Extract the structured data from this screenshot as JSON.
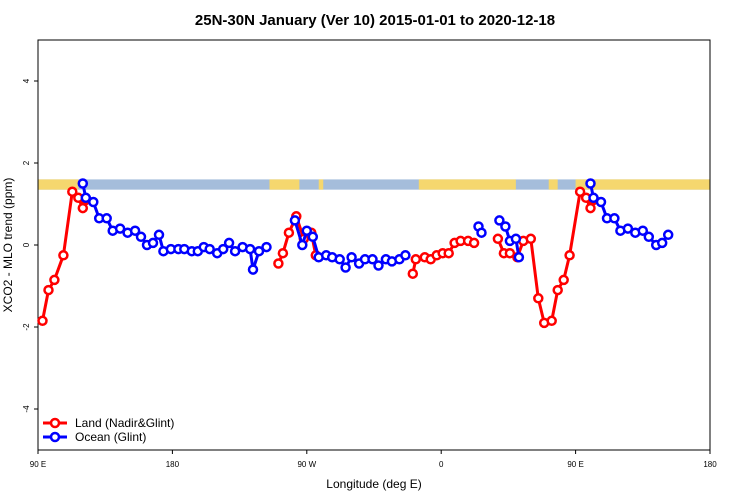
{
  "chart_data": {
    "type": "line",
    "title": "25N-30N January (Ver 10)   2015-01-01 to 2020-12-18",
    "xlabel": "Longitude (deg E)",
    "ylabel": "XCO2 - MLO trend (ppm)",
    "xlim": [
      90,
      540
    ],
    "ylim": [
      -5,
      5
    ],
    "x_ticks": [
      {
        "value": 90,
        "label": "90 E"
      },
      {
        "value": 180,
        "label": "180"
      },
      {
        "value": 270,
        "label": "90 W"
      },
      {
        "value": 360,
        "label": "0"
      },
      {
        "value": 450,
        "label": "90 E"
      },
      {
        "value": 540,
        "label": "180"
      }
    ],
    "y_ticks": [
      {
        "value": -4,
        "label": "-4"
      },
      {
        "value": -2,
        "label": "-2"
      },
      {
        "value": 0,
        "label": "0"
      },
      {
        "value": 2,
        "label": "2"
      },
      {
        "value": 4,
        "label": "4"
      }
    ],
    "grid": false,
    "legend_position": "bottom-left",
    "land_mask": {
      "y_range": [
        1.35,
        1.6
      ],
      "ocean_color": "#a5bddb",
      "land_color": "#f5d76e",
      "land_x_ranges": [
        [
          90,
          117
        ],
        [
          245,
          265
        ],
        [
          278,
          281
        ],
        [
          345,
          410
        ],
        [
          432,
          438
        ],
        [
          450,
          540
        ]
      ]
    },
    "series": [
      {
        "name": "Land (Nadir&Glint)",
        "color": "#ff0000",
        "segments": [
          [
            [
              93,
              -1.85
            ],
            [
              97,
              -1.1
            ],
            [
              101,
              -0.85
            ],
            [
              107,
              -0.25
            ],
            [
              113,
              1.3
            ],
            [
              117,
              1.15
            ],
            [
              120,
              0.9
            ],
            [
              122,
              1.1
            ]
          ],
          [
            [
              251,
              -0.45
            ],
            [
              254,
              -0.2
            ],
            [
              258,
              0.3
            ],
            [
              263,
              0.7
            ],
            [
              268,
              0.15
            ],
            [
              273,
              0.3
            ],
            [
              276,
              -0.25
            ]
          ],
          [
            [
              341,
              -0.7
            ],
            [
              343,
              -0.35
            ],
            [
              349,
              -0.3
            ],
            [
              353,
              -0.35
            ],
            [
              357,
              -0.25
            ],
            [
              361,
              -0.2
            ],
            [
              365,
              -0.2
            ],
            [
              369,
              0.05
            ],
            [
              373,
              0.1
            ],
            [
              378,
              0.1
            ],
            [
              382,
              0.05
            ]
          ],
          [
            [
              398,
              0.15
            ],
            [
              402,
              -0.2
            ],
            [
              406,
              -0.2
            ],
            [
              411,
              -0.3
            ],
            [
              415,
              0.1
            ],
            [
              420,
              0.15
            ],
            [
              425,
              -1.3
            ],
            [
              429,
              -1.9
            ],
            [
              434,
              -1.85
            ],
            [
              438,
              -1.1
            ],
            [
              442,
              -0.85
            ],
            [
              446,
              -0.25
            ],
            [
              453,
              1.3
            ],
            [
              457,
              1.15
            ],
            [
              460,
              0.9
            ],
            [
              462,
              1.1
            ]
          ]
        ]
      },
      {
        "name": "Ocean (Glint)",
        "color": "#0000ff",
        "segments": [
          [
            [
              120,
              1.5
            ],
            [
              122,
              1.15
            ],
            [
              127,
              1.05
            ],
            [
              131,
              0.65
            ],
            [
              136,
              0.65
            ],
            [
              140,
              0.35
            ],
            [
              145,
              0.4
            ],
            [
              150,
              0.3
            ],
            [
              155,
              0.35
            ],
            [
              159,
              0.2
            ],
            [
              163,
              0
            ],
            [
              167,
              0.05
            ],
            [
              171,
              0.25
            ],
            [
              174,
              -0.15
            ],
            [
              179,
              -0.1
            ],
            [
              184,
              -0.1
            ],
            [
              188,
              -0.1
            ],
            [
              193,
              -0.15
            ],
            [
              197,
              -0.15
            ],
            [
              201,
              -0.05
            ],
            [
              205,
              -0.1
            ],
            [
              210,
              -0.2
            ],
            [
              214,
              -0.1
            ],
            [
              218,
              0.05
            ],
            [
              222,
              -0.15
            ],
            [
              227,
              -0.05
            ],
            [
              232,
              -0.1
            ],
            [
              234,
              -0.6
            ],
            [
              238,
              -0.15
            ],
            [
              243,
              -0.05
            ]
          ],
          [
            [
              262,
              0.6
            ],
            [
              267,
              0
            ],
            [
              270,
              0.35
            ],
            [
              274,
              0.2
            ],
            [
              278,
              -0.3
            ],
            [
              283,
              -0.25
            ],
            [
              287,
              -0.3
            ],
            [
              292,
              -0.35
            ],
            [
              296,
              -0.55
            ],
            [
              300,
              -0.3
            ],
            [
              305,
              -0.45
            ],
            [
              309,
              -0.35
            ],
            [
              314,
              -0.35
            ],
            [
              318,
              -0.5
            ],
            [
              323,
              -0.35
            ],
            [
              327,
              -0.4
            ],
            [
              332,
              -0.35
            ],
            [
              336,
              -0.25
            ]
          ],
          [
            [
              385,
              0.45
            ],
            [
              387,
              0.3
            ]
          ],
          [
            [
              399,
              0.6
            ],
            [
              403,
              0.45
            ],
            [
              406,
              0.1
            ],
            [
              410,
              0.15
            ],
            [
              412,
              -0.3
            ]
          ],
          [
            [
              460,
              1.5
            ],
            [
              462,
              1.15
            ],
            [
              467,
              1.05
            ],
            [
              471,
              0.65
            ],
            [
              476,
              0.65
            ],
            [
              480,
              0.35
            ],
            [
              485,
              0.4
            ],
            [
              490,
              0.3
            ],
            [
              495,
              0.35
            ],
            [
              499,
              0.2
            ],
            [
              504,
              0
            ],
            [
              508,
              0.05
            ],
            [
              512,
              0.25
            ]
          ]
        ]
      }
    ]
  }
}
